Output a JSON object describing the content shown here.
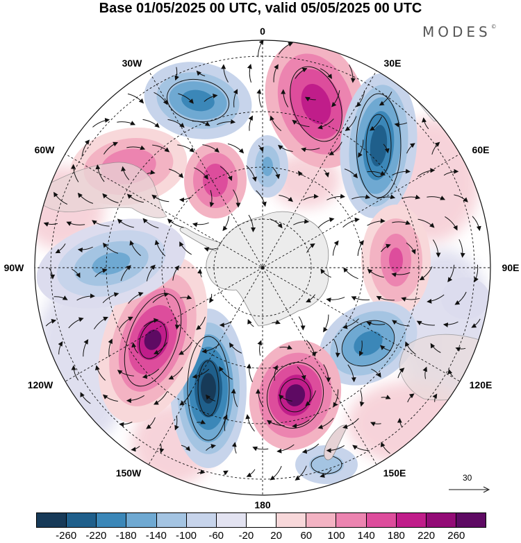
{
  "title": "Base 01/05/2025 00 UTC, valid 05/05/2025 00 UTC",
  "brand": "MODES",
  "brand_mark": "©",
  "map": {
    "projection": "south-polar-stereographic",
    "longitude_labels": {
      "top": "0",
      "top_right": "30E",
      "right_upper": "60E",
      "right": "90E",
      "right_lower": "120E",
      "bottom_right": "150E",
      "bottom": "180",
      "bottom_left": "150W",
      "left_lower": "120W",
      "left": "90W",
      "left_upper": "60W",
      "top_left": "30W"
    },
    "reference_vector_label": "30",
    "anomaly_centers": [
      {
        "sign": "neg",
        "value": -200,
        "region": "south Atlantic 30W"
      },
      {
        "sign": "pos",
        "value": 200,
        "region": "south Atlantic 15E"
      },
      {
        "sign": "neg",
        "value": -240,
        "region": "south Indian 40E"
      },
      {
        "sign": "pos",
        "value": 140,
        "region": "south Indian 90E"
      },
      {
        "sign": "neg",
        "value": -200,
        "region": "south of Australia 120E"
      },
      {
        "sign": "pos",
        "value": 250,
        "region": "Ross Sea 165E"
      },
      {
        "sign": "neg",
        "value": -260,
        "region": "south Pacific 165W"
      },
      {
        "sign": "pos",
        "value": 260,
        "region": "south Pacific 125W"
      },
      {
        "sign": "neg",
        "value": -140,
        "region": "Bellingshausen 85W"
      },
      {
        "sign": "pos",
        "value": 180,
        "region": "Weddell 40W"
      },
      {
        "sign": "pos",
        "value": 140,
        "region": "south America 60W"
      },
      {
        "sign": "neg",
        "value": -120,
        "region": "Weddell 10W"
      }
    ]
  },
  "colorbar": {
    "colors": [
      "#173a58",
      "#1f5f8b",
      "#3b87b8",
      "#6fa9d2",
      "#a4c4e2",
      "#c7d4eb",
      "#e3e3f1",
      "#ffffff",
      "#f8d8da",
      "#f3b3c3",
      "#ec84b0",
      "#dd4d9c",
      "#c01d8a",
      "#930b76",
      "#5e0a63"
    ],
    "tick_labels": [
      "-260",
      "-220",
      "-180",
      "-140",
      "-100",
      "-60",
      "-20",
      "20",
      "60",
      "100",
      "140",
      "180",
      "220",
      "260"
    ]
  }
}
